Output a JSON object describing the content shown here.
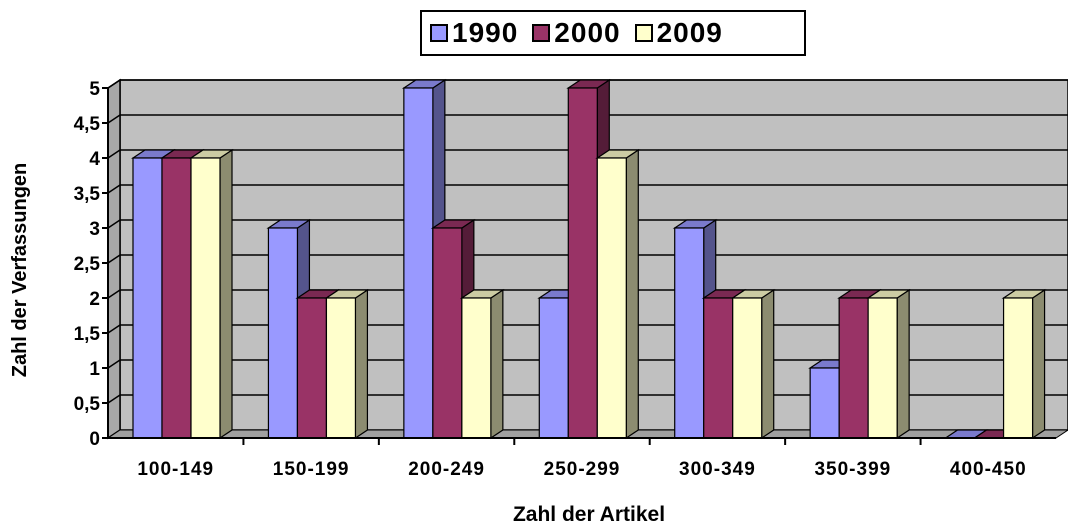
{
  "chart_data": {
    "type": "bar",
    "style": "3d-clustered",
    "categories": [
      "100-149",
      "150-199",
      "200-249",
      "250-299",
      "300-349",
      "350-399",
      "400-450"
    ],
    "series": [
      {
        "name": "1990",
        "values": [
          4,
          3,
          5,
          2,
          3,
          1,
          0
        ],
        "color": "#9999FF"
      },
      {
        "name": "2000",
        "values": [
          4,
          2,
          3,
          5,
          2,
          2,
          0
        ],
        "color": "#993366"
      },
      {
        "name": "2009",
        "values": [
          4,
          2,
          2,
          4,
          2,
          2,
          2
        ],
        "color": "#FFFFCC"
      }
    ],
    "xlabel": "Zahl der Artikel",
    "ylabel": "Zahl der Verfassungen",
    "ylim": [
      0,
      5
    ],
    "yticks": [
      "0",
      "0,5",
      "1",
      "1,5",
      "2",
      "2,5",
      "3",
      "3,5",
      "4",
      "4,5",
      "5"
    ],
    "grid": true,
    "legend_position": "top",
    "plot_background": "#C0C0C0"
  }
}
